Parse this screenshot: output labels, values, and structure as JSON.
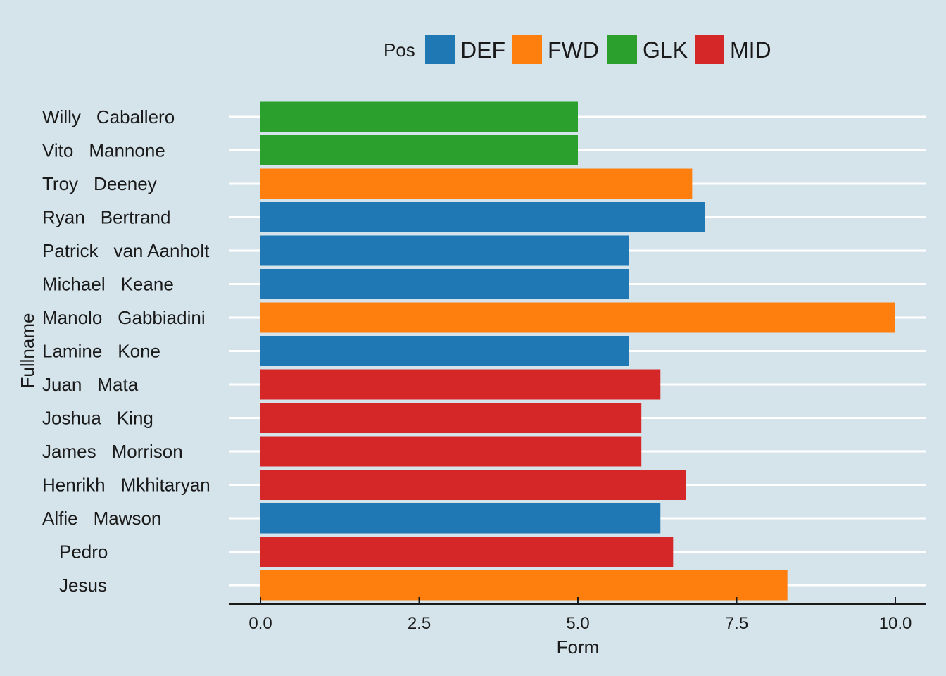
{
  "chart_data": {
    "type": "bar",
    "orientation": "horizontal",
    "xlabel": "Form",
    "ylabel": "Fullname",
    "xlim": [
      0,
      10.5
    ],
    "xticks": [
      "0.0",
      "2.5",
      "5.0",
      "7.5",
      "10.0"
    ],
    "xtick_values": [
      0,
      2.5,
      5.0,
      7.5,
      10.0
    ],
    "grid": "horizontal",
    "legend": {
      "title": "Pos",
      "position": "top",
      "entries": [
        {
          "label": "DEF",
          "color": "#1f77b4"
        },
        {
          "label": "FWD",
          "color": "#ff7f0e"
        },
        {
          "label": "GLK",
          "color": "#2ca02c"
        },
        {
          "label": "MID",
          "color": "#d62728"
        }
      ]
    },
    "bars": [
      {
        "first": "Willy",
        "last": "Caballero",
        "value": 5.0,
        "pos": "GLK"
      },
      {
        "first": "Vito",
        "last": "Mannone",
        "value": 5.0,
        "pos": "GLK"
      },
      {
        "first": "Troy",
        "last": "Deeney",
        "value": 6.8,
        "pos": "FWD"
      },
      {
        "first": "Ryan",
        "last": "Bertrand",
        "value": 7.0,
        "pos": "DEF"
      },
      {
        "first": "Patrick",
        "last": "van Aanholt",
        "value": 5.8,
        "pos": "DEF"
      },
      {
        "first": "Michael",
        "last": "Keane",
        "value": 5.8,
        "pos": "DEF"
      },
      {
        "first": "Manolo",
        "last": "Gabbiadini",
        "value": 10.0,
        "pos": "FWD"
      },
      {
        "first": "Lamine",
        "last": "Kone",
        "value": 5.8,
        "pos": "DEF"
      },
      {
        "first": "Juan",
        "last": "Mata",
        "value": 6.3,
        "pos": "MID"
      },
      {
        "first": "Joshua",
        "last": "King",
        "value": 6.0,
        "pos": "MID"
      },
      {
        "first": "James",
        "last": "Morrison",
        "value": 6.0,
        "pos": "MID"
      },
      {
        "first": "Henrikh",
        "last": "Mkhitaryan",
        "value": 6.7,
        "pos": "MID"
      },
      {
        "first": "Alfie",
        "last": "Mawson",
        "value": 6.3,
        "pos": "DEF"
      },
      {
        "first": "",
        "last": "Pedro",
        "value": 6.5,
        "pos": "MID"
      },
      {
        "first": "",
        "last": "Jesus",
        "value": 8.3,
        "pos": "FWD"
      }
    ]
  }
}
